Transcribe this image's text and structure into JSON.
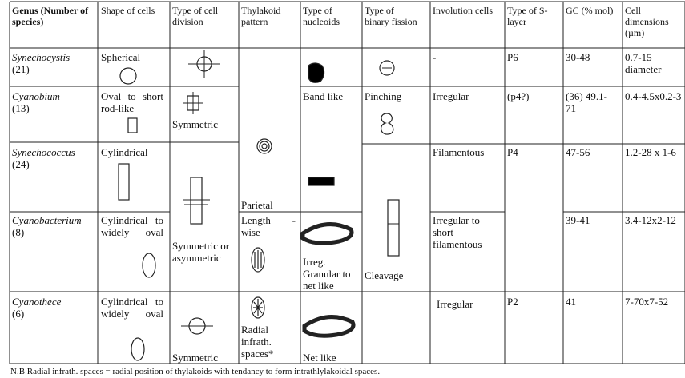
{
  "header": {
    "columns": [
      "Genus (Number of species)",
      "Shape of cells",
      "Type of cell division",
      "Thylakoid pattern",
      "Type of nucleoids",
      "Type of binary fission",
      "Involution cells",
      "Type of S-layer",
      "GC (% mol)",
      "Cell dimensions (µm)"
    ]
  },
  "rows": [
    {
      "genus": "Synechocystis",
      "species": "(21)",
      "shape": "Spherical",
      "involution": "-",
      "s_layer": "P6",
      "gc": "30-48",
      "dimensions": "0.7-15 diameter"
    },
    {
      "genus": "Cyanobium",
      "species": "(13)",
      "shape": "Oval to short rod-like",
      "division": "Symmetric",
      "nucleoid": "Band like",
      "fission": "Pinching",
      "involution": "Irregular",
      "s_layer": "(p4?)",
      "gc": "(36) 49.1-71",
      "dimensions": "0.4-4.5x0.2-3"
    },
    {
      "genus": "Synechococcus",
      "species": "(24)",
      "shape": "Cylindrical",
      "thylakoid": "Parietal",
      "involution": "Filamentous",
      "s_layer": "P4",
      "gc": "47-56",
      "dimensions": "1.2-28 x 1-6"
    },
    {
      "genus": "Cyanobacterium",
      "species": "(8)",
      "shape": "Cylindrical to widely oval",
      "division": "Symmetric or asymmetric",
      "thylakoid": "Length - wise",
      "nucleoid": "Irreg. Granular to net like",
      "fission": "Cleavage",
      "involution": "Irregular to short filamentous",
      "gc": "39-41",
      "dimensions": "3.4-12x2-12"
    },
    {
      "genus": "Cyanothece",
      "species": "(6)",
      "shape": "Cylindrical to widely oval",
      "division": "Symmetric",
      "thylakoid": "Radial infrath. spaces*",
      "nucleoid": "Net like",
      "involution": "Irregular",
      "s_layer": "P2",
      "gc": "41",
      "dimensions": "7-70x7-52"
    }
  ],
  "footnote": "N.B Radial infrath. spaces = radial position of thylakoids with tendancy to form intrathlylakoidal spaces."
}
